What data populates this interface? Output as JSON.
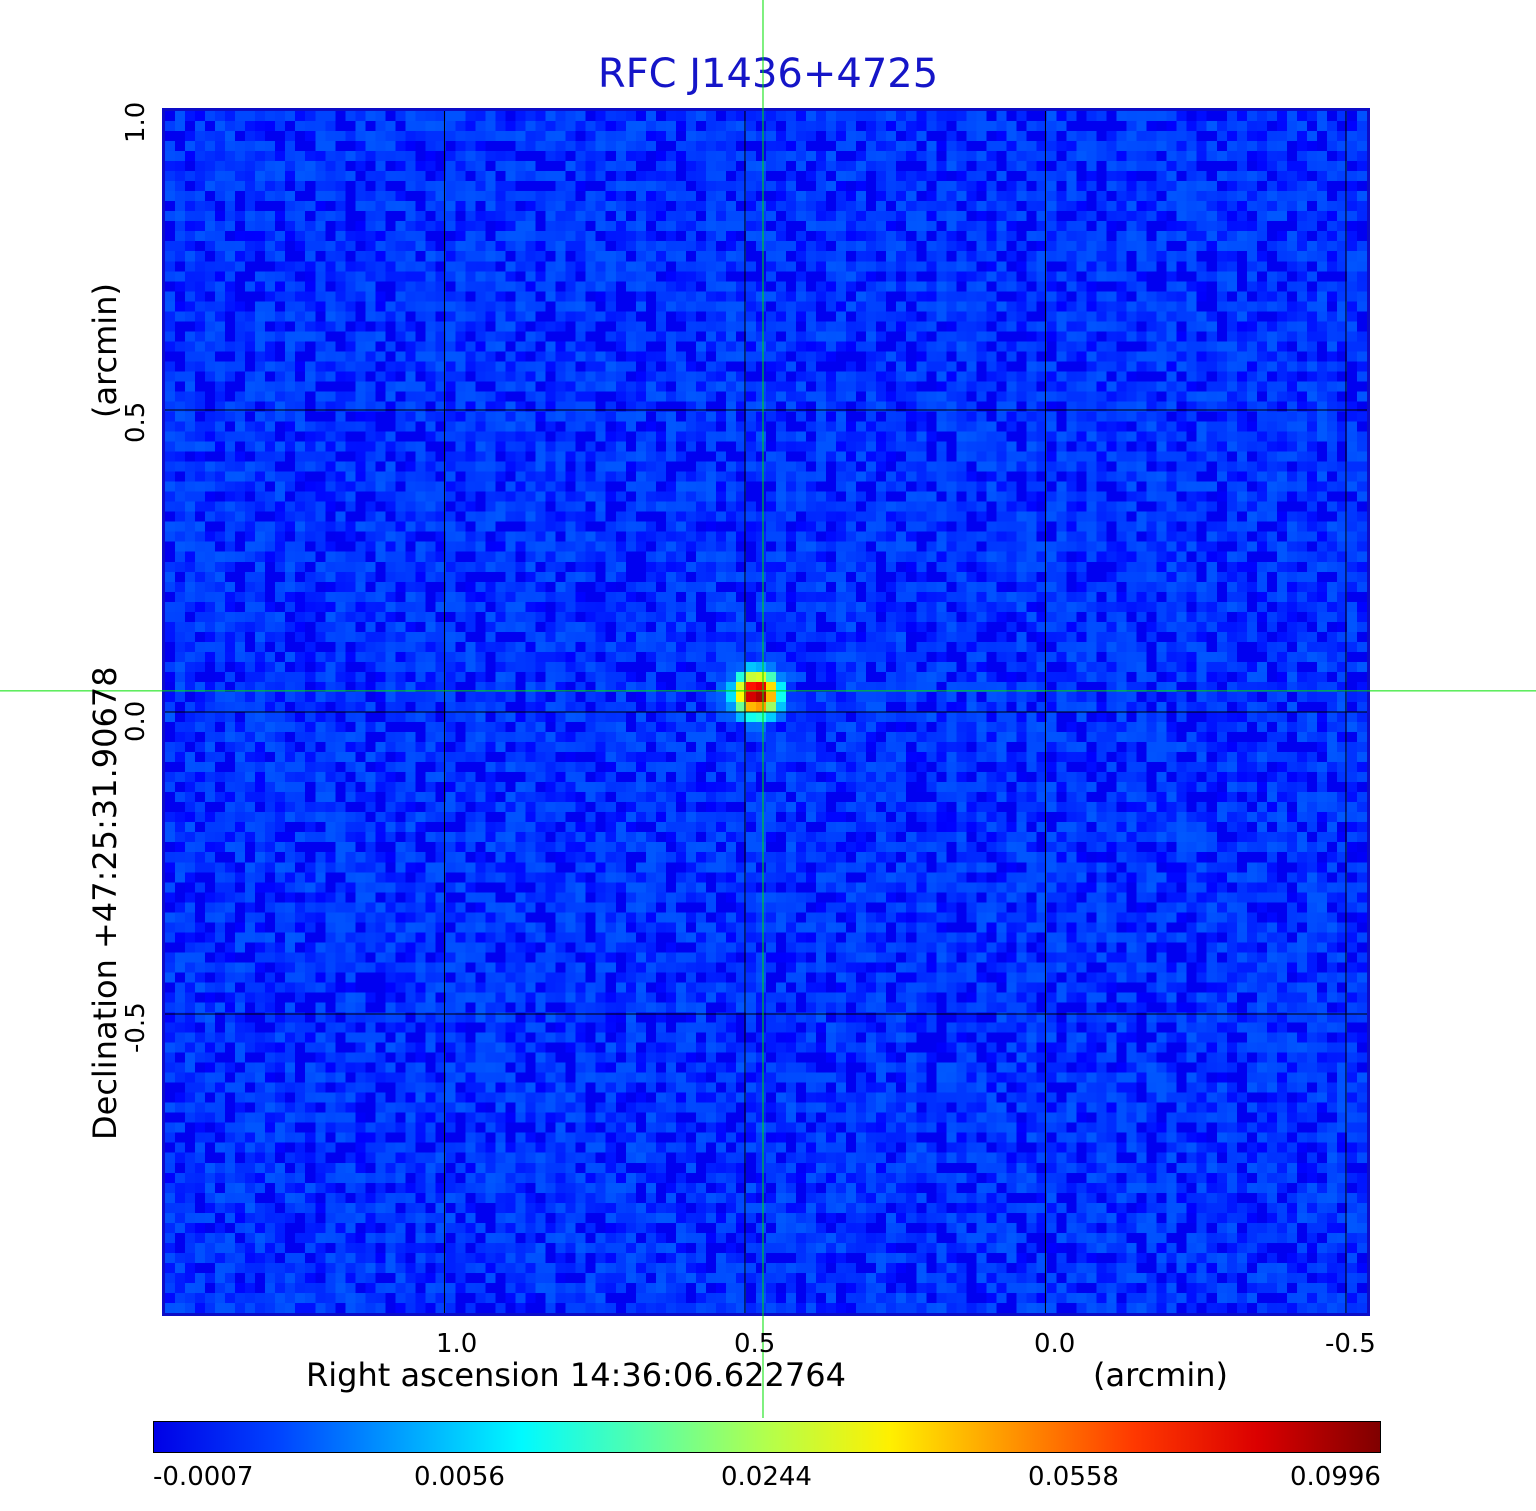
{
  "chart_data": {
    "type": "heatmap",
    "title": "RFC J1436+4725",
    "xlabel": "Right ascension  14:36:06.622764",
    "xlabel_unit": "(arcmin)",
    "ylabel": "Declination  +47:25:31.90678",
    "ylabel_unit": "(arcmin)",
    "xlim": [
      1.47,
      -0.54
    ],
    "ylim": [
      -1.0,
      1.0
    ],
    "x_ticks": [
      "1.0",
      "0.5",
      "0.0",
      "-0.5"
    ],
    "y_ticks": [
      "1.0",
      "0.5",
      "0.0",
      "-0.5"
    ],
    "grid": true,
    "crosshair": {
      "x": 0.47,
      "y": 0.035,
      "color": "#00e000"
    },
    "peak": {
      "x": 0.48,
      "y": 0.03,
      "value": 0.0996
    },
    "colormap": "jet",
    "colorbar_ticks": [
      "-0.0007",
      "0.0056",
      "0.0244",
      "0.0558",
      "0.0996"
    ],
    "colorbar_range": [
      -0.0007,
      0.0996
    ]
  }
}
